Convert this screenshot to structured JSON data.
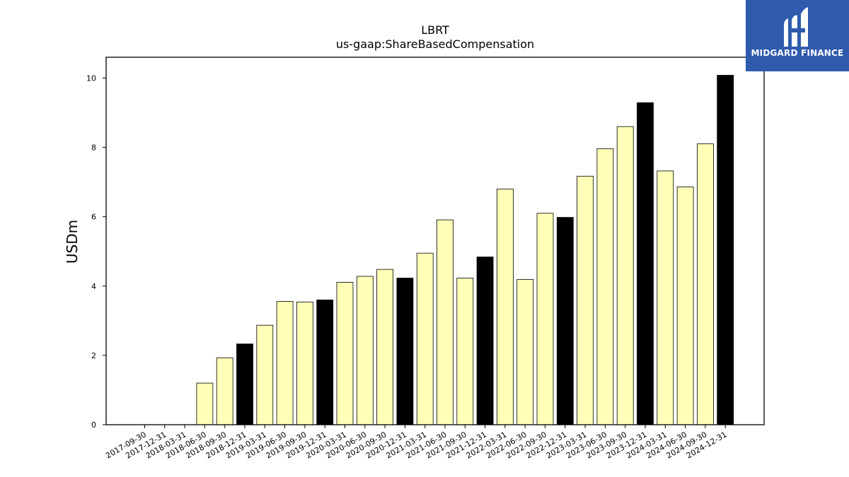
{
  "chart_data": {
    "type": "bar",
    "title": "LBRT",
    "subtitle": "us-gaap:ShareBasedCompensation",
    "xlabel": "",
    "ylabel": "USDm",
    "ylim": [
      0,
      10.6
    ],
    "yticks": [
      "0",
      "2",
      "4",
      "6",
      "8",
      "10"
    ],
    "grid": false,
    "categories": [
      "2017-09-30",
      "2017-12-31",
      "2018-03-31",
      "2018-06-30",
      "2018-09-30",
      "2018-12-31",
      "2019-03-31",
      "2019-06-30",
      "2019-09-30",
      "2019-12-31",
      "2020-03-31",
      "2020-06-30",
      "2020-09-30",
      "2020-12-31",
      "2021-03-31",
      "2021-06-30",
      "2021-09-30",
      "2021-12-31",
      "2022-03-31",
      "2022-06-30",
      "2022-09-30",
      "2022-12-31",
      "2023-03-31",
      "2023-06-30",
      "2023-09-30",
      "2023-12-31",
      "2024-03-31",
      "2024-06-30",
      "2024-09-30",
      "2024-12-31"
    ],
    "values": [
      null,
      null,
      null,
      1.2,
      1.93,
      2.33,
      2.87,
      3.56,
      3.54,
      3.6,
      4.11,
      4.28,
      4.48,
      4.23,
      4.95,
      5.91,
      4.23,
      4.84,
      6.8,
      4.19,
      6.1,
      5.98,
      7.17,
      7.96,
      8.6,
      9.29,
      7.32,
      6.86,
      8.1,
      10.08
    ],
    "highlight": [
      false,
      false,
      false,
      false,
      false,
      true,
      false,
      false,
      false,
      true,
      false,
      false,
      false,
      true,
      false,
      false,
      false,
      true,
      false,
      false,
      false,
      true,
      false,
      false,
      false,
      true,
      false,
      false,
      false,
      true
    ],
    "colors": {
      "bar": "#ffffb8",
      "highlight": "#000000",
      "edge": "#000000"
    }
  },
  "logo": {
    "text": "MIDGARD FINANCE",
    "background": "#2f5bad"
  }
}
